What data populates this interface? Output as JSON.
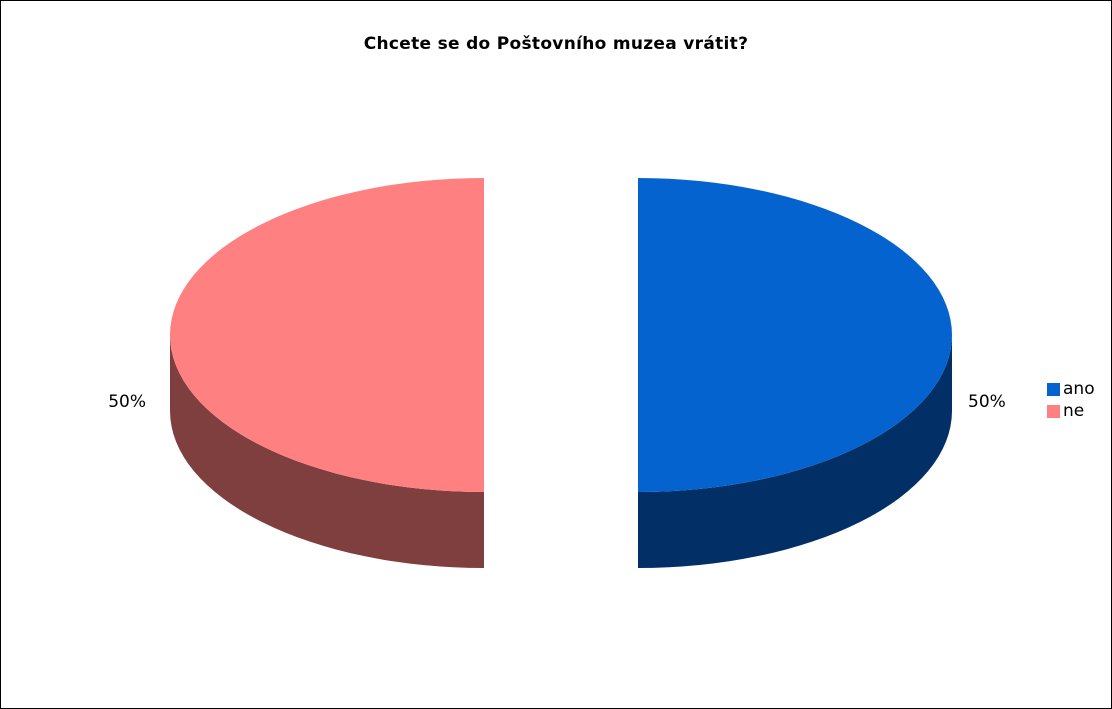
{
  "chart_data": {
    "type": "pie",
    "title": "Chcete se do Poštovního muzea vrátit?",
    "categories": [
      "ano",
      "ne"
    ],
    "values": [
      50,
      50
    ],
    "data_labels": [
      "50%",
      "50%"
    ],
    "colors": {
      "ano": {
        "top": "#0563CF",
        "side": "#023066"
      },
      "ne": {
        "top": "#FF8080",
        "side": "#803F3F"
      }
    },
    "legend": {
      "position": "right",
      "items": [
        {
          "label": "ano",
          "color": "#0563CF"
        },
        {
          "label": "ne",
          "color": "#FF8080"
        }
      ]
    },
    "style": "3d-exploded"
  }
}
